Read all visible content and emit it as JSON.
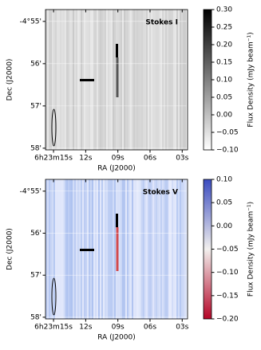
{
  "chart_data": [
    {
      "type": "image",
      "title": "Stokes I",
      "xlabel": "RA (J2000)",
      "ylabel": "Dec (J2000)",
      "xlim": [
        15.75,
        2.5
      ],
      "ylim": [
        54.72,
        58.04
      ],
      "xticks": [
        {
          "value": 15,
          "label": "6h23m15s"
        },
        {
          "value": 12,
          "label": "12s"
        },
        {
          "value": 9,
          "label": "09s"
        },
        {
          "value": 6,
          "label": "06s"
        },
        {
          "value": 3,
          "label": "03s"
        }
      ],
      "yticks": [
        {
          "value": 55,
          "label": "-4°55'"
        },
        {
          "value": 56,
          "label": "56'"
        },
        {
          "value": 57,
          "label": "57'"
        },
        {
          "value": 58,
          "label": "58'"
        }
      ],
      "colorbar": {
        "label": "Flux Density (mJy beam⁻¹)",
        "lim": [
          -0.1,
          0.3
        ],
        "colormap": [
          "#ffffff",
          "#000000"
        ],
        "ticks": [
          {
            "value": -0.1,
            "label": "−0.10"
          },
          {
            "value": -0.05,
            "label": "−0.05"
          },
          {
            "value": 0,
            "label": "0.00"
          },
          {
            "value": 0.05,
            "label": "0.05"
          },
          {
            "value": 0.1,
            "label": "0.10"
          },
          {
            "value": 0.15,
            "label": "0.15"
          },
          {
            "value": 0.2,
            "label": "0.20"
          },
          {
            "value": 0.25,
            "label": "0.25"
          },
          {
            "value": 0.3,
            "label": "0.30"
          }
        ]
      }
    },
    {
      "type": "image",
      "title": "Stokes V",
      "xlabel": "RA (J2000)",
      "ylabel": "Dec (J2000)",
      "xlim": [
        15.75,
        2.5
      ],
      "ylim": [
        54.72,
        58.04
      ],
      "xticks": [
        {
          "value": 15,
          "label": "6h23m15s"
        },
        {
          "value": 12,
          "label": "12s"
        },
        {
          "value": 9,
          "label": "09s"
        },
        {
          "value": 6,
          "label": "06s"
        },
        {
          "value": 3,
          "label": "03s"
        }
      ],
      "yticks": [
        {
          "value": 55,
          "label": "-4°55'"
        },
        {
          "value": 56,
          "label": "56'"
        },
        {
          "value": 57,
          "label": "57'"
        },
        {
          "value": 58,
          "label": "58'"
        }
      ],
      "colorbar": {
        "label": "Flux Density (mJy beam⁻¹)",
        "lim": [
          -0.2,
          0.1
        ],
        "colormap": [
          "#b40426",
          "#f2f0ee",
          "#3b4cc0"
        ],
        "ticks": [
          {
            "value": -0.2,
            "label": "−0.20"
          },
          {
            "value": -0.15,
            "label": "−0.15"
          },
          {
            "value": -0.1,
            "label": "−0.10"
          },
          {
            "value": -0.05,
            "label": "−0.05"
          },
          {
            "value": 0,
            "label": "0.00"
          },
          {
            "value": 0.05,
            "label": "0.05"
          },
          {
            "value": 0.1,
            "label": "0.10"
          }
        ]
      }
    }
  ]
}
